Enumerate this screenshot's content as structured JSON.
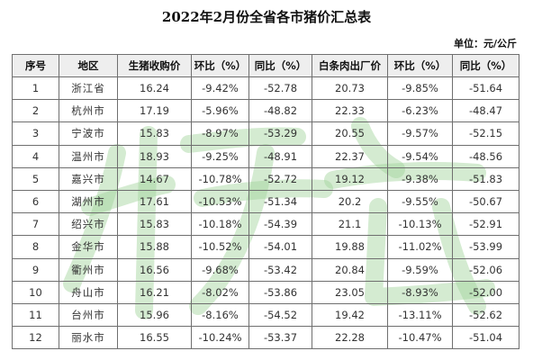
{
  "title": "2022年2月份全省各市猪价汇总表",
  "unit": "单位：元/公斤",
  "watermark_text": "猪价",
  "headers": [
    "序号",
    "地区",
    "生猪收购价",
    "环比（%）",
    "同比（%）",
    "白条肉出厂价",
    "环比（%）",
    "同比（%）"
  ],
  "rows": [
    [
      "1",
      "浙江省",
      "16.24",
      "-9.42%",
      "-52.78",
      "20.73",
      "-9.85%",
      "-51.64"
    ],
    [
      "2",
      "杭州市",
      "17.19",
      "-5.96%",
      "-48.82",
      "22.33",
      "-6.23%",
      "-48.47"
    ],
    [
      "3",
      "宁波市",
      "15.83",
      "-8.97%",
      "-53.29",
      "20.55",
      "-9.57%",
      "-52.15"
    ],
    [
      "4",
      "温州市",
      "18.93",
      "-9.25%",
      "-48.91",
      "22.37",
      "-9.54%",
      "-48.56"
    ],
    [
      "5",
      "嘉兴市",
      "14.67",
      "-10.78%",
      "-52.72",
      "19.12",
      "-9.38%",
      "-51.83"
    ],
    [
      "6",
      "湖州市",
      "17.61",
      "-10.53%",
      "-51.34",
      "20.2",
      "-9.55%",
      "-50.67"
    ],
    [
      "7",
      "绍兴市",
      "15.83",
      "-10.18%",
      "-54.39",
      "21.1",
      "-10.13%",
      "-52.91"
    ],
    [
      "8",
      "金华市",
      "15.88",
      "-10.52%",
      "-54.01",
      "19.88",
      "-11.02%",
      "-53.99"
    ],
    [
      "9",
      "衢州市",
      "16.56",
      "-9.68%",
      "-53.42",
      "20.84",
      "-9.59%",
      "-52.06"
    ],
    [
      "10",
      "舟山市",
      "16.21",
      "-8.02%",
      "-53.86",
      "23.05",
      "-8.93%",
      "-52.00"
    ],
    [
      "11",
      "台州市",
      "15.96",
      "-8.16%",
      "-54.52",
      "19.42",
      "-13.11%",
      "-52.62"
    ],
    [
      "12",
      "丽水市",
      "16.55",
      "-10.24%",
      "-53.37",
      "22.28",
      "-10.47%",
      "-51.04"
    ]
  ]
}
